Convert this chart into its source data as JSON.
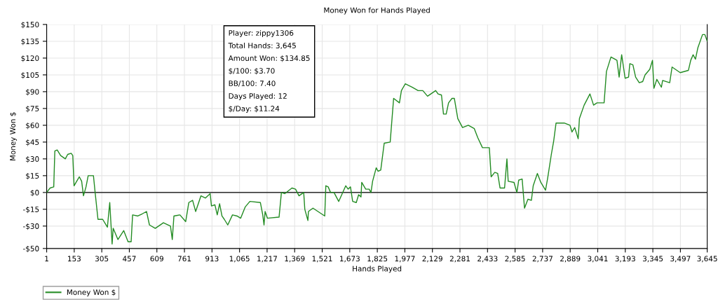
{
  "chart_data": {
    "type": "line",
    "title": "Money Won for Hands Played",
    "xlabel": "Hands Played",
    "ylabel": "Money Won $",
    "annotations": [
      "Player: zippy1306",
      "Total Hands: 3,645",
      "Amount Won: $134.85",
      "$/100: $3.70",
      "BB/100: 7.40",
      "Days Played: 12",
      "$/Day: $11.24"
    ],
    "series": [
      {
        "name": "Money Won $",
        "color": "#228b22",
        "x": [
          1,
          20,
          40,
          46,
          59,
          78,
          104,
          117,
          136,
          145,
          152,
          181,
          194,
          204,
          218,
          230,
          259,
          269,
          284,
          310,
          336,
          349,
          362,
          368,
          394,
          426,
          450,
          467,
          475,
          504,
          529,
          552,
          568,
          600,
          645,
          684,
          694,
          703,
          736,
          768,
          785,
          806,
          823,
          852,
          877,
          903,
          910,
          929,
          942,
          955,
          968,
          981,
          1000,
          1026,
          1051,
          1071,
          1096,
          1122,
          1180,
          1193,
          1200,
          1206,
          1219,
          1283,
          1296,
          1315,
          1354,
          1374,
          1393,
          1419,
          1425,
          1442,
          1445,
          1470,
          1535,
          1541,
          1554,
          1567,
          1586,
          1612,
          1651,
          1664,
          1677,
          1689,
          1709,
          1722,
          1735,
          1739,
          1761,
          1780,
          1790,
          1799,
          1819,
          1829,
          1844,
          1863,
          1896,
          1915,
          1947,
          1958,
          1979,
          2018,
          2050,
          2076,
          2102,
          2147,
          2160,
          2179,
          2190,
          2205,
          2218,
          2237,
          2250,
          2269,
          2295,
          2327,
          2360,
          2379,
          2405,
          2443,
          2453,
          2473,
          2489,
          2502,
          2527,
          2540,
          2547,
          2579,
          2595,
          2605,
          2624,
          2637,
          2656,
          2675,
          2685,
          2708,
          2727,
          2753,
          2766,
          2785,
          2798,
          2811,
          2856,
          2888,
          2899,
          2914,
          2933,
          2940,
          2966,
          2998,
          3018,
          3037,
          3076,
          3089,
          3114,
          3147,
          3159,
          3173,
          3192,
          3211,
          3218,
          3235,
          3250,
          3270,
          3289,
          3302,
          3328,
          3343,
          3351,
          3367,
          3392,
          3399,
          3438,
          3451,
          3496,
          3541,
          3554,
          3567,
          3580,
          3593,
          3619,
          3632,
          3645
        ],
        "values": [
          0,
          4,
          5,
          37,
          38,
          33,
          30,
          34,
          35,
          33,
          6,
          14,
          10,
          -3,
          5,
          15,
          15,
          -1,
          -24,
          -24,
          -31,
          -9,
          -46,
          -32,
          -42,
          -34,
          -44,
          -44,
          -20,
          -21,
          -19,
          -17,
          -29,
          -32,
          -27,
          -30,
          -42,
          -21,
          -20,
          -26,
          -9,
          -7,
          -17,
          -3,
          -5,
          -1,
          -12,
          -11,
          -20,
          -10,
          -21,
          -24,
          -29,
          -20,
          -21,
          -23,
          -13,
          -8,
          -9,
          -20,
          -29,
          -17,
          -23,
          -22,
          0,
          -1,
          4,
          3,
          -3,
          0,
          -15,
          -25,
          -17,
          -14,
          -21,
          6,
          5,
          0,
          0,
          -8,
          6,
          3,
          5,
          -8,
          -9,
          -2,
          -4,
          9,
          3,
          3,
          0,
          10,
          22,
          19,
          20,
          44,
          45,
          84,
          80,
          91,
          97,
          94,
          91,
          91,
          86,
          91,
          88,
          87,
          70,
          70,
          80,
          84,
          84,
          66,
          58,
          60,
          57,
          49,
          40,
          40,
          14,
          18,
          17,
          4,
          4,
          30,
          10,
          9,
          0,
          11,
          12,
          -14,
          -6,
          -7,
          6,
          17,
          9,
          2,
          14,
          34,
          46,
          62,
          62,
          60,
          54,
          58,
          48,
          66,
          78,
          88,
          78,
          80,
          80,
          108,
          121,
          118,
          103,
          123,
          102,
          103,
          115,
          114,
          103,
          98,
          99,
          105,
          110,
          118,
          93,
          101,
          94,
          100,
          98,
          112,
          107,
          109,
          118,
          123,
          119,
          129,
          141,
          141,
          135
        ]
      }
    ],
    "xlim": [
      1,
      3645
    ],
    "xticks": [
      1,
      {
        "value": 153,
        "label": "153"
      },
      305,
      457,
      609,
      761,
      913,
      {
        "value": 1065,
        "label": "1,065"
      },
      {
        "value": 1217,
        "label": "1,217"
      },
      {
        "value": 1369,
        "label": "1,369"
      },
      {
        "value": 1521,
        "label": "1,521"
      },
      {
        "value": 1673,
        "label": "1,673"
      },
      {
        "value": 1825,
        "label": "1,825"
      },
      {
        "value": 1977,
        "label": "1,977"
      },
      {
        "value": 2129,
        "label": "2,129"
      },
      {
        "value": 2281,
        "label": "2,281"
      },
      {
        "value": 2433,
        "label": "2,433"
      },
      {
        "value": 2585,
        "label": "2,585"
      },
      {
        "value": 2737,
        "label": "2,737"
      },
      {
        "value": 2889,
        "label": "2,889"
      },
      {
        "value": 3041,
        "label": "3,041"
      },
      {
        "value": 3193,
        "label": "3,193"
      },
      {
        "value": 3345,
        "label": "3,345"
      },
      {
        "value": 3497,
        "label": "3,497"
      },
      {
        "value": 3645,
        "label": "3,645"
      }
    ],
    "ylim": [
      -50,
      150
    ],
    "yticks": [
      {
        "value": -50,
        "label": "-$50"
      },
      {
        "value": -30,
        "label": "-$30"
      },
      {
        "value": -15,
        "label": "-$15"
      },
      {
        "value": 0,
        "label": "$0"
      },
      {
        "value": 15,
        "label": "$15"
      },
      {
        "value": 30,
        "label": "$30"
      },
      {
        "value": 45,
        "label": "$45"
      },
      {
        "value": 60,
        "label": "$60"
      },
      {
        "value": 75,
        "label": "$75"
      },
      {
        "value": 90,
        "label": "$90"
      },
      {
        "value": 105,
        "label": "$105"
      },
      {
        "value": 120,
        "label": "$120"
      },
      {
        "value": 135,
        "label": "$135"
      },
      {
        "value": 150,
        "label": "$150"
      }
    ],
    "ref_lines": [
      {
        "axis": "y",
        "value": 0,
        "color": "#000000"
      }
    ],
    "grid": true,
    "legend": "bottom left"
  }
}
